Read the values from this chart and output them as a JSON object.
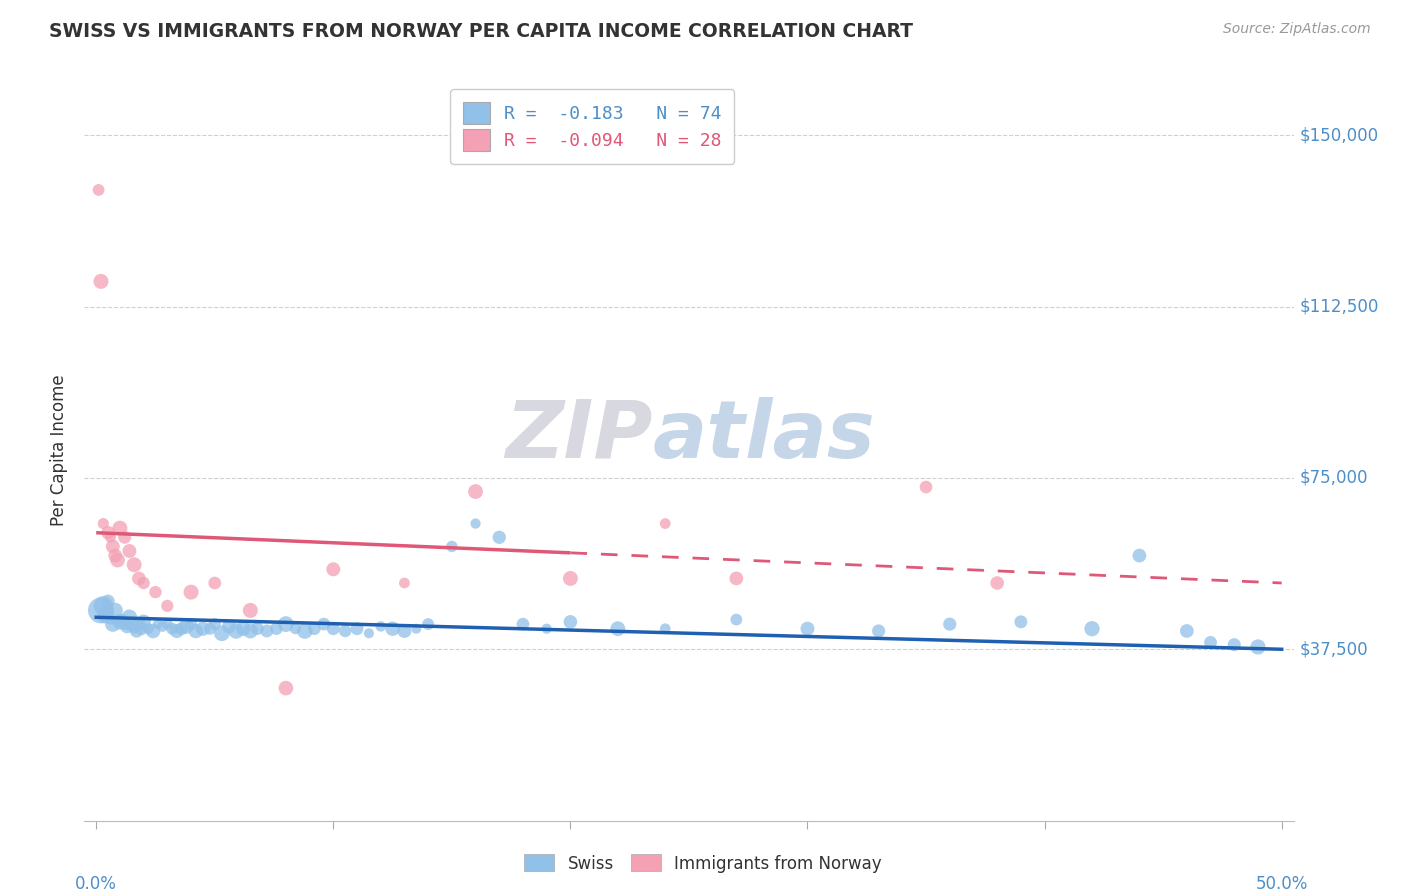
{
  "title": "SWISS VS IMMIGRANTS FROM NORWAY PER CAPITA INCOME CORRELATION CHART",
  "source": "Source: ZipAtlas.com",
  "ylabel": "Per Capita Income",
  "xlim": [
    -0.005,
    0.505
  ],
  "ylim": [
    0,
    162000
  ],
  "yticks": [
    0,
    37500,
    75000,
    112500,
    150000
  ],
  "ytick_labels": [
    "",
    "$37,500",
    "$75,000",
    "$112,500",
    "$150,000"
  ],
  "xtick_positions": [
    0.0,
    0.1,
    0.2,
    0.3,
    0.4,
    0.5
  ],
  "xtick_edge_labels": [
    "0.0%",
    "50.0%"
  ],
  "background_color": "#ffffff",
  "grid_color": "#d0d0d0",
  "swiss_color": "#91C0E8",
  "norway_color": "#F4A0B5",
  "swiss_line_color": "#2060B0",
  "norway_line_color": "#E05878",
  "label_color": "#4C8FC8",
  "swiss_R": -0.183,
  "swiss_N": 74,
  "norway_R": -0.094,
  "norway_N": 28,
  "swiss_x": [
    0.002,
    0.003,
    0.004,
    0.005,
    0.006,
    0.007,
    0.008,
    0.009,
    0.01,
    0.011,
    0.012,
    0.013,
    0.014,
    0.015,
    0.016,
    0.017,
    0.018,
    0.019,
    0.02,
    0.022,
    0.024,
    0.026,
    0.028,
    0.03,
    0.032,
    0.034,
    0.036,
    0.038,
    0.04,
    0.042,
    0.045,
    0.048,
    0.05,
    0.053,
    0.056,
    0.059,
    0.062,
    0.065,
    0.068,
    0.072,
    0.076,
    0.08,
    0.084,
    0.088,
    0.092,
    0.096,
    0.1,
    0.105,
    0.11,
    0.115,
    0.12,
    0.125,
    0.13,
    0.135,
    0.14,
    0.15,
    0.16,
    0.17,
    0.18,
    0.19,
    0.2,
    0.22,
    0.24,
    0.27,
    0.3,
    0.33,
    0.36,
    0.39,
    0.42,
    0.44,
    0.46,
    0.47,
    0.48,
    0.49
  ],
  "swiss_y": [
    46000,
    47000,
    45000,
    48000,
    44000,
    43000,
    46000,
    44000,
    43500,
    44000,
    43000,
    42500,
    44500,
    43000,
    42000,
    41500,
    43000,
    42000,
    43500,
    42000,
    41500,
    43000,
    42500,
    43000,
    42000,
    41500,
    42000,
    42500,
    43000,
    41500,
    42000,
    42000,
    43000,
    41000,
    42500,
    41500,
    42000,
    41500,
    42000,
    41500,
    42000,
    43000,
    42000,
    41500,
    42000,
    43000,
    42000,
    41500,
    42000,
    41000,
    42500,
    42000,
    41500,
    42000,
    43000,
    60000,
    65000,
    62000,
    43000,
    42000,
    43500,
    42000,
    42000,
    44000,
    42000,
    41500,
    43000,
    43500,
    42000,
    58000,
    41500,
    39000,
    38500,
    38000
  ],
  "norway_x": [
    0.001,
    0.002,
    0.003,
    0.005,
    0.006,
    0.007,
    0.008,
    0.009,
    0.01,
    0.012,
    0.014,
    0.016,
    0.018,
    0.02,
    0.025,
    0.03,
    0.04,
    0.05,
    0.065,
    0.08,
    0.1,
    0.13,
    0.16,
    0.2,
    0.24,
    0.27,
    0.35,
    0.38
  ],
  "norway_y": [
    138000,
    118000,
    65000,
    63000,
    62000,
    60000,
    58000,
    57000,
    64000,
    62000,
    59000,
    56000,
    53000,
    52000,
    50000,
    47000,
    50000,
    52000,
    46000,
    29000,
    55000,
    52000,
    72000,
    53000,
    65000,
    53000,
    73000,
    52000
  ],
  "watermark_zip": "ZIP",
  "watermark_atlas": "atlas"
}
